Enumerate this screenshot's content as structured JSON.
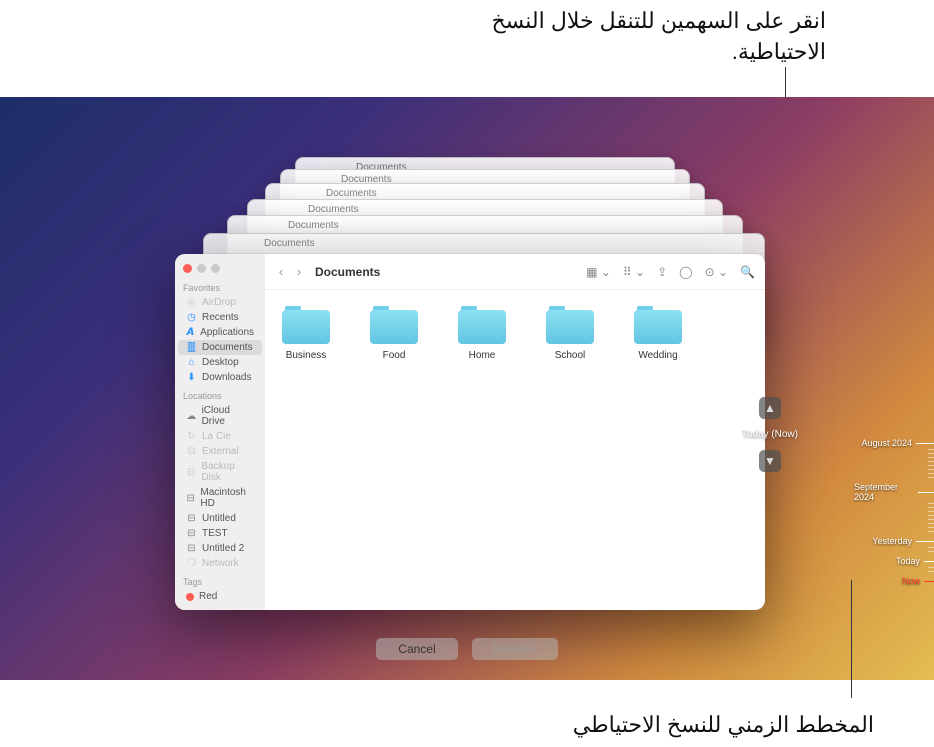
{
  "annotations": {
    "top": "انقر على السهمين للتنقل خلال النسخ الاحتياطية.",
    "bottom": "المخطط الزمني للنسخ الاحتياطي"
  },
  "finder": {
    "title": "Documents",
    "sidebar": {
      "favorites_label": "Favorites",
      "locations_label": "Locations",
      "tags_label": "Tags",
      "favorites": [
        {
          "label": "AirDrop",
          "icon": "airdrop",
          "dim": true
        },
        {
          "label": "Recents",
          "icon": "clock"
        },
        {
          "label": "Applications",
          "icon": "apps"
        },
        {
          "label": "Documents",
          "icon": "doc",
          "active": true
        },
        {
          "label": "Desktop",
          "icon": "desktop"
        },
        {
          "label": "Downloads",
          "icon": "download"
        }
      ],
      "locations": [
        {
          "label": "iCloud Drive",
          "icon": "cloud"
        },
        {
          "label": "La Cie",
          "icon": "tm",
          "dim": true
        },
        {
          "label": "External",
          "icon": "disk",
          "dim": true
        },
        {
          "label": "Backup Disk",
          "icon": "disk",
          "dim": true
        },
        {
          "label": "Macintosh HD",
          "icon": "disk"
        },
        {
          "label": "Untitled",
          "icon": "disk"
        },
        {
          "label": "TEST",
          "icon": "disk"
        },
        {
          "label": "Untitled 2",
          "icon": "disk"
        },
        {
          "label": "Network",
          "icon": "globe",
          "dim": true
        }
      ],
      "tags": [
        {
          "label": "Red",
          "color": "#ff5b52"
        }
      ]
    },
    "folders": [
      "Business",
      "Food",
      "Home",
      "School",
      "Wedding"
    ]
  },
  "traffic": {
    "close": "#ff5f57",
    "min": "#febc2e",
    "max": "#28c840",
    "gray": "#c9c9c9"
  },
  "nav": {
    "current": "Today (Now)"
  },
  "timeline": {
    "marks": [
      {
        "label": "August 2024",
        "major": true
      },
      {
        "label": "September 2024",
        "major": true
      },
      {
        "label": "Yesterday",
        "major": true
      },
      {
        "label": "Today",
        "major": false
      },
      {
        "label": "Now",
        "major": false,
        "now": true
      }
    ]
  },
  "buttons": {
    "cancel": "Cancel",
    "restore": "Restore"
  }
}
